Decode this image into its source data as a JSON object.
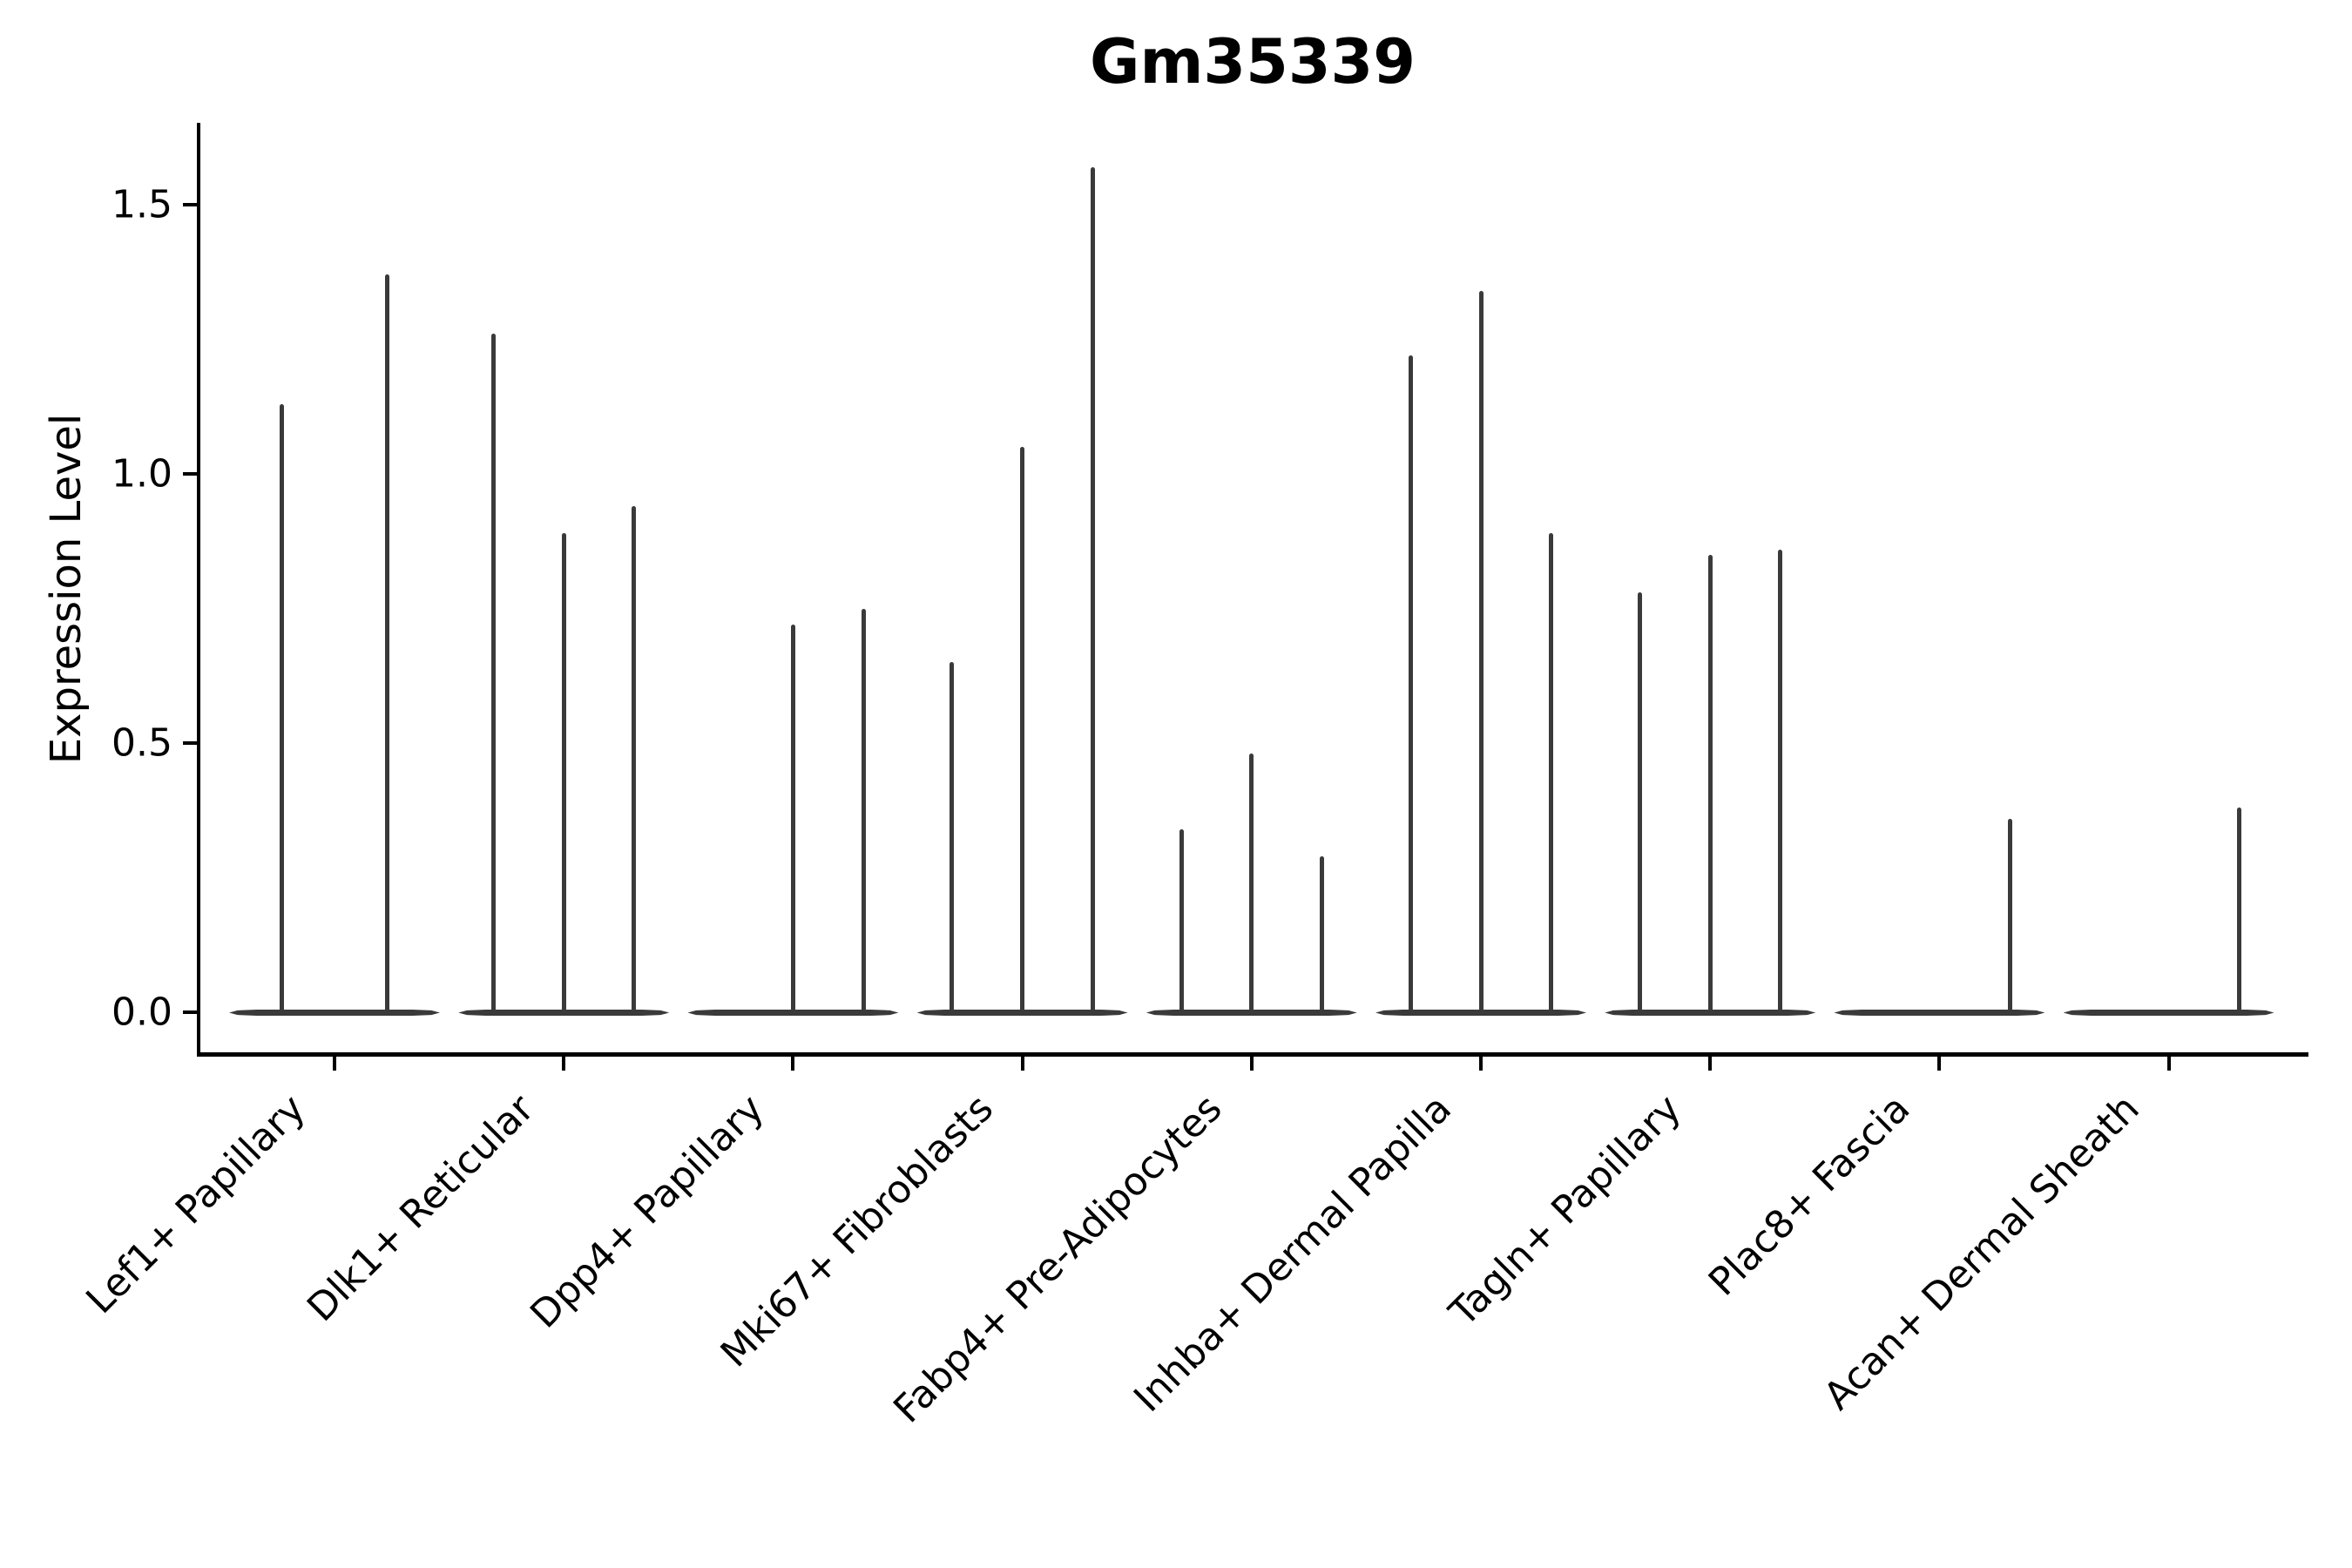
{
  "title": "Gm35339",
  "y_axis": {
    "label": "Expression Level",
    "tick_labels": [
      "0.0",
      "0.5",
      "1.0",
      "1.5"
    ]
  },
  "colors": {
    "background": "#ffffff",
    "axis": "#000000",
    "text": "#000000",
    "violin": "#3a3a3a"
  },
  "chart_data": {
    "type": "violin",
    "title": "Gm35339",
    "xlabel": "",
    "ylabel": "Expression Level",
    "ylim": [
      0,
      1.65
    ],
    "yticks": [
      0,
      0.5,
      1.0,
      1.5
    ],
    "grid": false,
    "legend": "none",
    "style": "needle-thin violins: dense mass at 0 forms a flat horizontal lens spanning each category; each sub-violin is a thin vertical spike up to its maximum expression value",
    "categories": [
      "Lef1+ Papillary",
      "Dlk1+ Reticular",
      "Dpp4+ Papillary",
      "Mki67+ Fibroblasts",
      "Fabp4+ Pre-Adipocytes",
      "Inhba+ Dermal Papilla",
      "Tagln+ Papillary",
      "Plac8+ Fascia",
      "Acan+ Dermal Sheath"
    ],
    "groups": [
      {
        "category": "Lef1+ Papillary",
        "violin_max_values": [
          1.13,
          1.37
        ]
      },
      {
        "category": "Dlk1+ Reticular",
        "violin_max_values": [
          1.26,
          0.89,
          0.94
        ]
      },
      {
        "category": "Dpp4+ Papillary",
        "violin_max_values": [
          0,
          0.72,
          0.75
        ]
      },
      {
        "category": "Mki67+ Fibroblasts",
        "violin_max_values": [
          0.65,
          1.05,
          1.57
        ]
      },
      {
        "category": "Fabp4+ Pre-Adipocytes",
        "violin_max_values": [
          0.34,
          0.48,
          0.29
        ]
      },
      {
        "category": "Inhba+ Dermal Papilla",
        "violin_max_values": [
          1.22,
          1.34,
          0.89
        ]
      },
      {
        "category": "Tagln+ Papillary",
        "violin_max_values": [
          0.78,
          0.85,
          0.86
        ]
      },
      {
        "category": "Plac8+ Fascia",
        "violin_max_values": [
          0,
          0,
          0.36
        ]
      },
      {
        "category": "Acan+ Dermal Sheath",
        "violin_max_values": [
          0,
          0,
          0.38
        ]
      }
    ]
  }
}
